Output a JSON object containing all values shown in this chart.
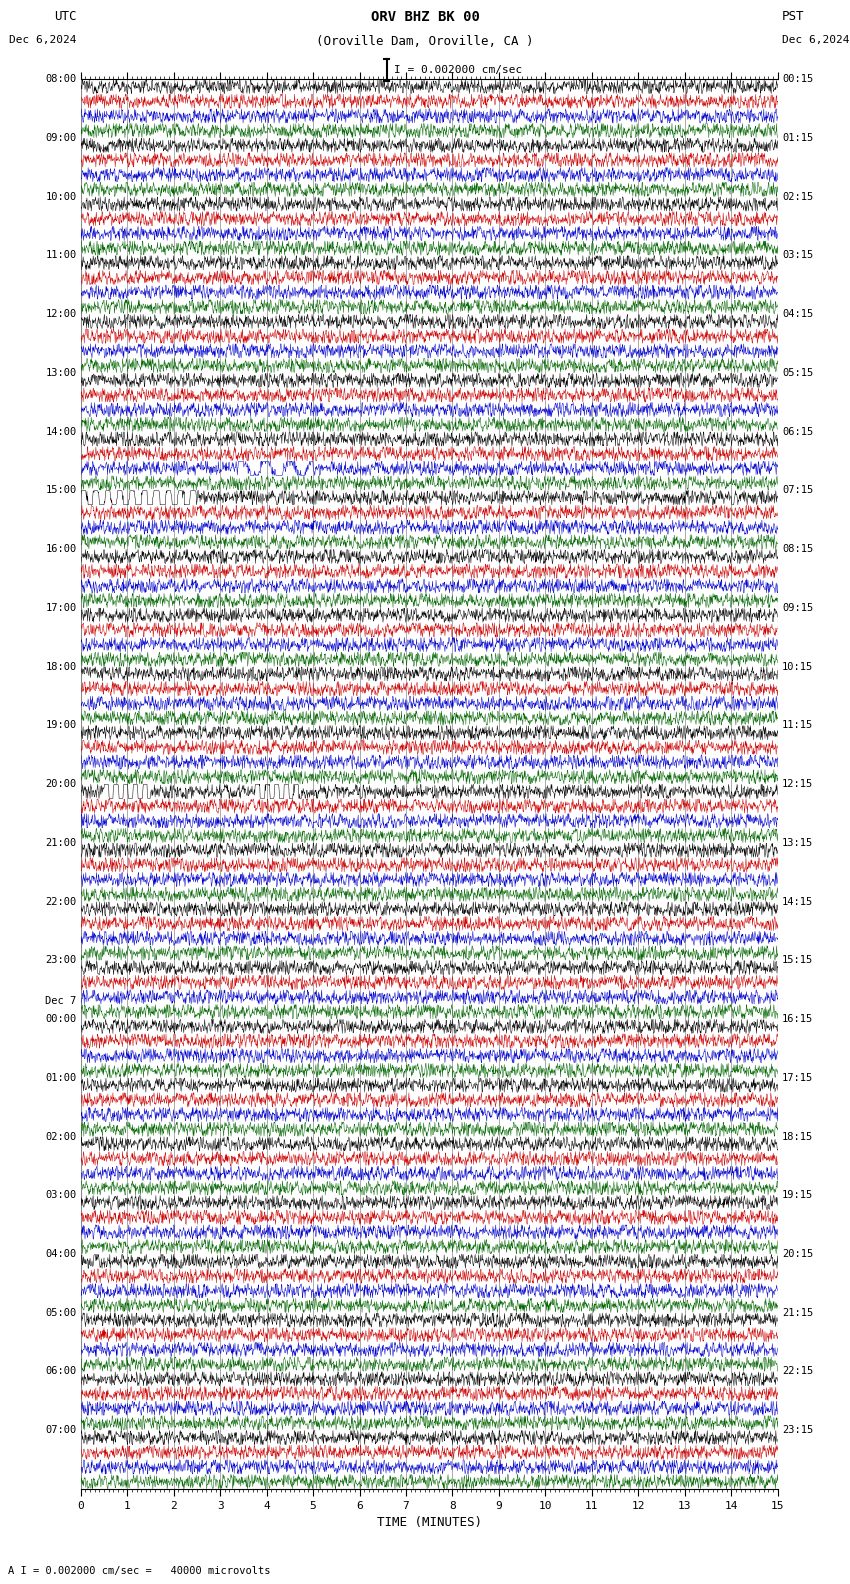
{
  "title_line1": "ORV BHZ BK 00",
  "title_line2": "(Oroville Dam, Oroville, CA )",
  "scale_text": "I = 0.002000 cm/sec",
  "bottom_text": "A I = 0.002000 cm/sec =   40000 microvolts",
  "xlabel": "TIME (MINUTES)",
  "left_label": "UTC",
  "left_date": "Dec 6,2024",
  "right_label": "PST",
  "right_date": "Dec 6,2024",
  "bg_color": "#ffffff",
  "trace_color_black": "#000000",
  "trace_color_red": "#cc0000",
  "trace_color_blue": "#0000cc",
  "trace_color_green": "#006600",
  "grid_color": "#888888",
  "fig_width": 8.5,
  "fig_height": 15.84,
  "dpi": 100,
  "n_hours": 24,
  "traces_per_hour": 4,
  "x_min": 0,
  "x_max": 15,
  "left_hour_labels": [
    "08:00",
    "09:00",
    "10:00",
    "11:00",
    "12:00",
    "13:00",
    "14:00",
    "15:00",
    "16:00",
    "17:00",
    "18:00",
    "19:00",
    "20:00",
    "21:00",
    "22:00",
    "23:00",
    "00:00",
    "01:00",
    "02:00",
    "03:00",
    "04:00",
    "05:00",
    "06:00",
    "07:00"
  ],
  "right_hour_labels": [
    "00:15",
    "01:15",
    "02:15",
    "03:15",
    "04:15",
    "05:15",
    "06:15",
    "07:15",
    "08:15",
    "09:15",
    "10:15",
    "11:15",
    "12:15",
    "13:15",
    "14:15",
    "15:15",
    "16:15",
    "17:15",
    "18:15",
    "19:15",
    "20:15",
    "21:15",
    "22:15",
    "23:15"
  ],
  "dec7_hour_index": 16,
  "noise_amp": 0.35,
  "spike_prob": 0.006
}
